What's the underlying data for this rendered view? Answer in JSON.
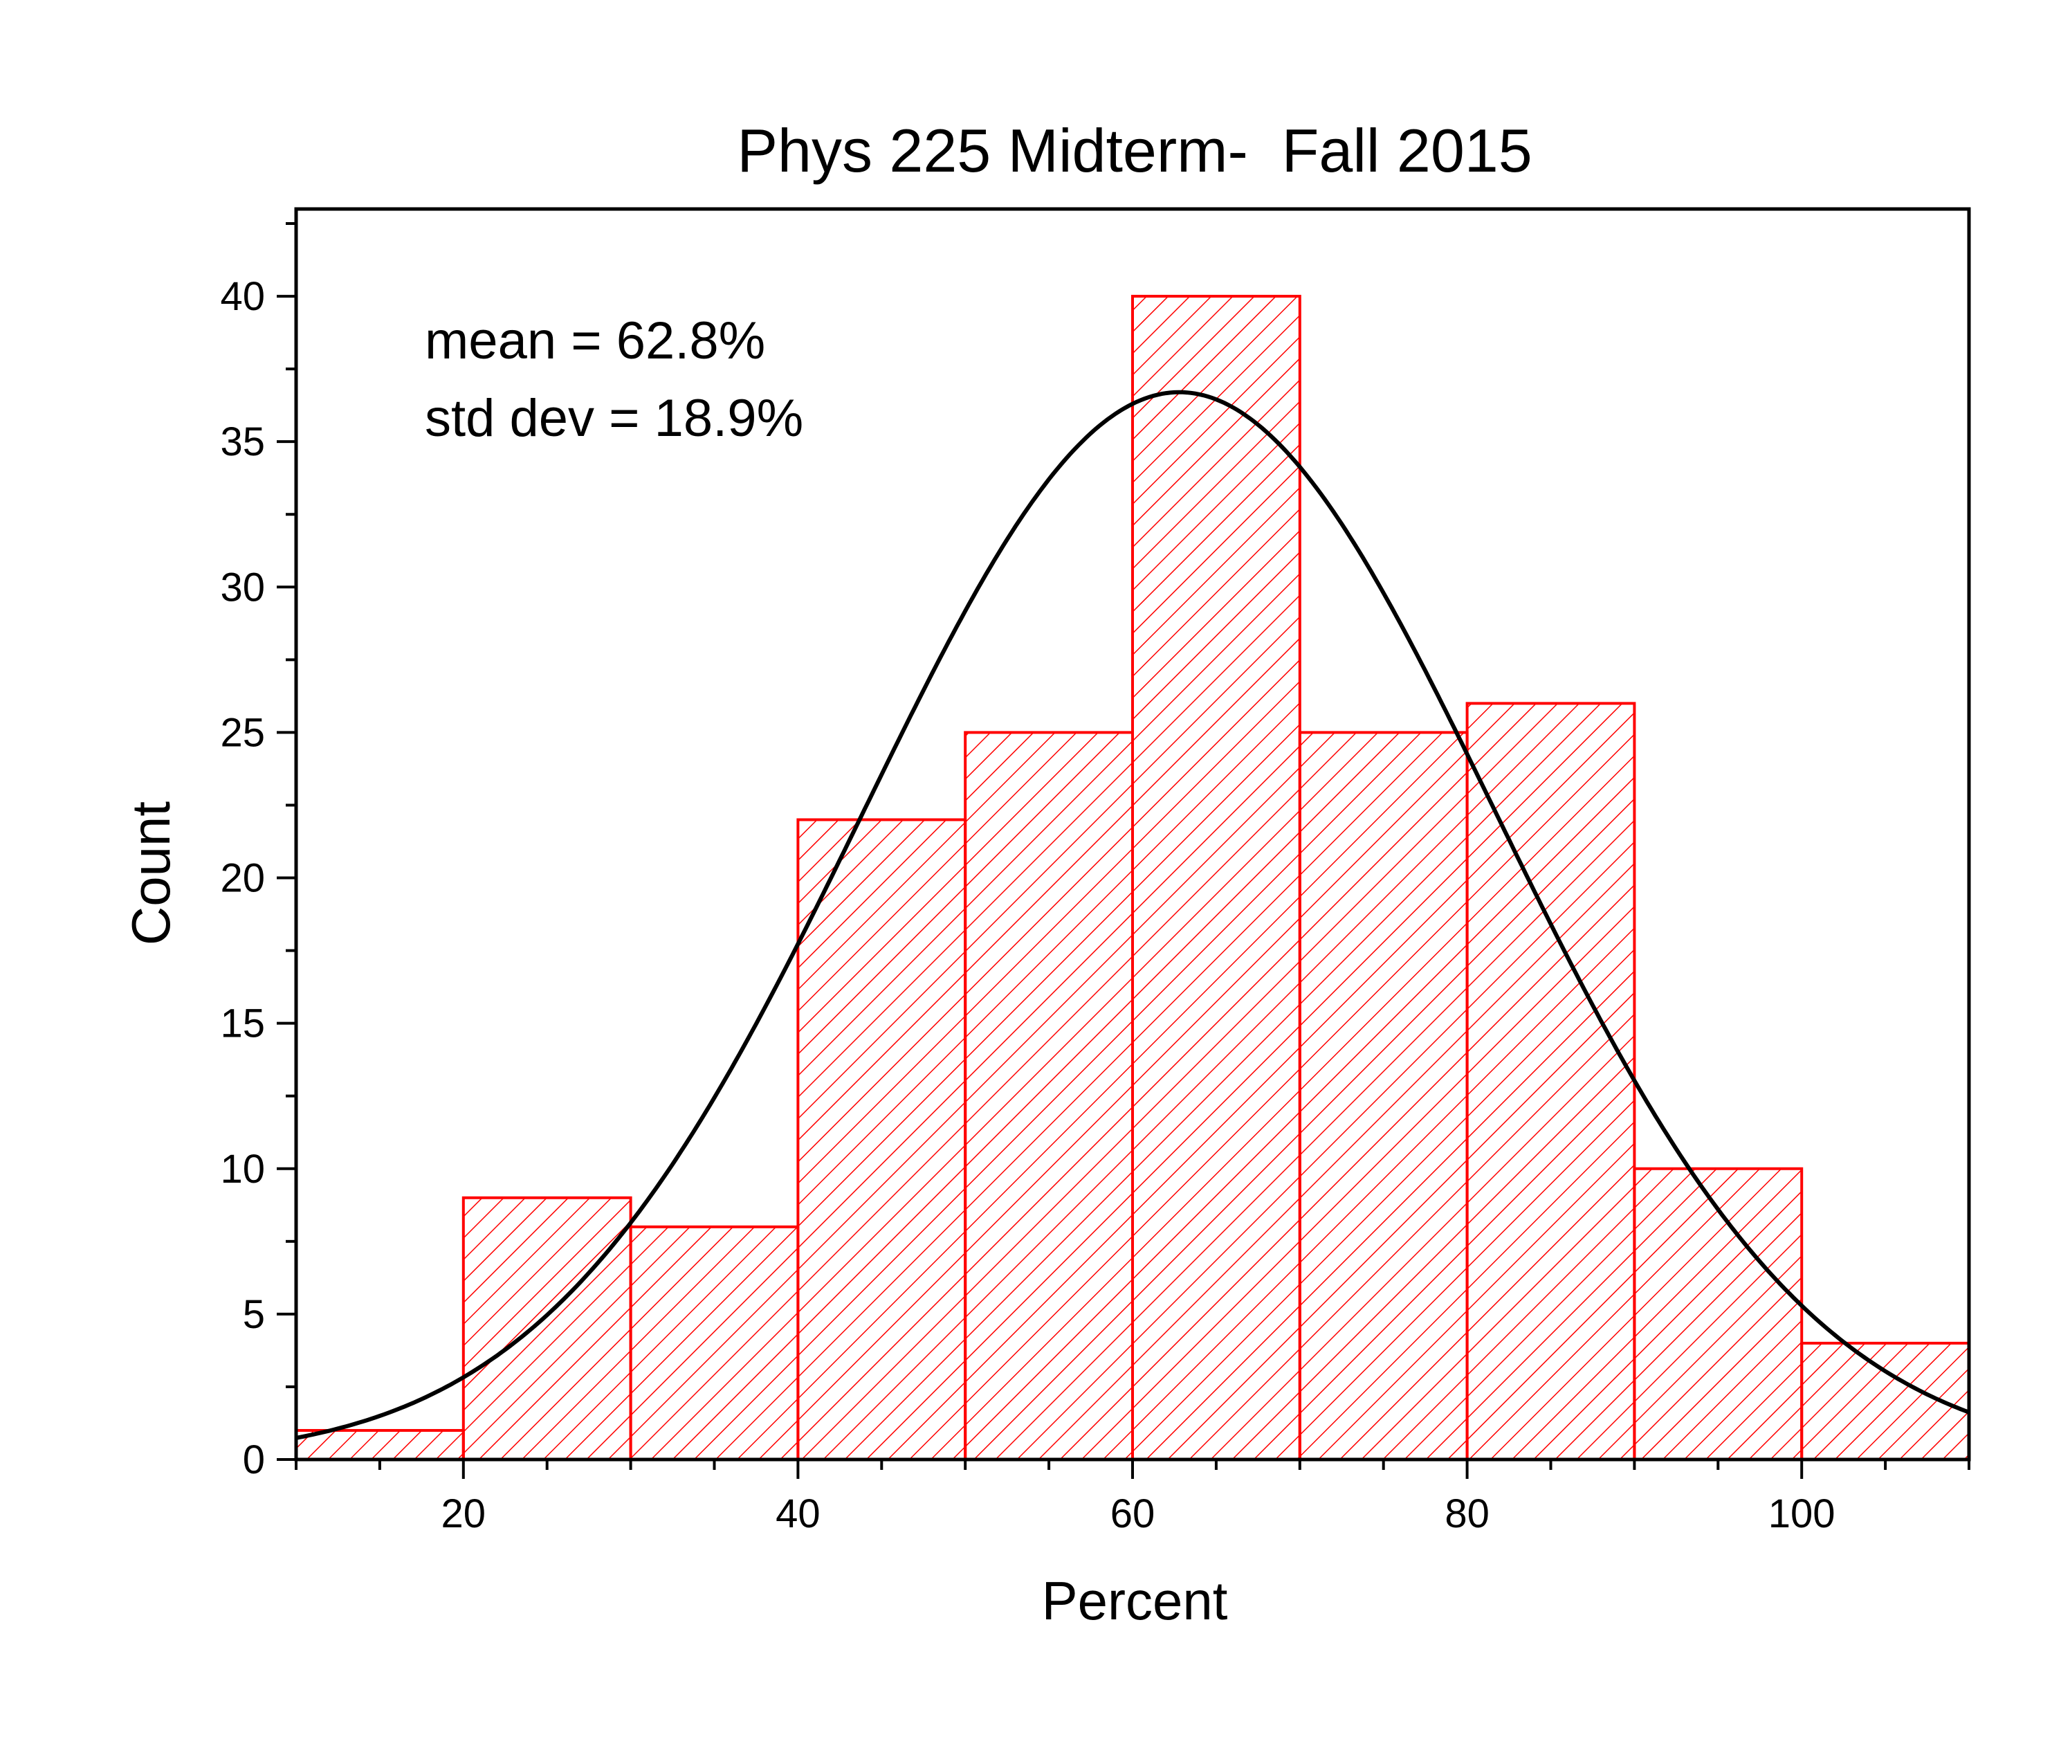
{
  "chart_data": {
    "type": "bar",
    "title": "Phys 225 Midterm-  Fall 2015",
    "xlabel": "Percent",
    "ylabel": "Count",
    "xlim": [
      10,
      110
    ],
    "ylim": [
      0,
      43
    ],
    "x_ticks": [
      20,
      40,
      60,
      80,
      100
    ],
    "y_ticks": [
      0,
      5,
      10,
      15,
      20,
      25,
      30,
      35,
      40
    ],
    "bins": [
      {
        "start": 10,
        "end": 20,
        "count": 1
      },
      {
        "start": 20,
        "end": 30,
        "count": 9
      },
      {
        "start": 30,
        "end": 40,
        "count": 8
      },
      {
        "start": 40,
        "end": 50,
        "count": 22
      },
      {
        "start": 50,
        "end": 60,
        "count": 25
      },
      {
        "start": 60,
        "end": 70,
        "count": 40
      },
      {
        "start": 70,
        "end": 80,
        "count": 25
      },
      {
        "start": 80,
        "end": 90,
        "count": 26
      },
      {
        "start": 90,
        "end": 100,
        "count": 10
      },
      {
        "start": 100,
        "end": 110,
        "count": 4
      }
    ],
    "fit_curve": {
      "type": "normal",
      "mean": 62.8,
      "std_dev": 18.9,
      "peak": 36.7,
      "color": "#000000"
    },
    "bar_color": "#ff0000",
    "fill": "diagonal-hatch",
    "grid": false,
    "annotations": [
      "mean = 62.8%",
      "std dev = 18.9%"
    ]
  }
}
